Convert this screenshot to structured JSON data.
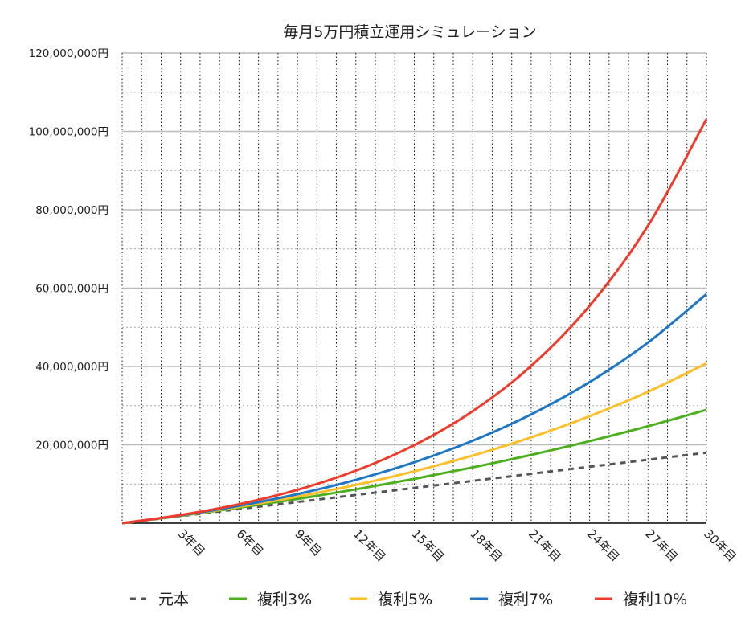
{
  "chart_data": {
    "type": "line",
    "title": "毎月5万円積立運用シミュレーション",
    "xlabel": "",
    "ylabel": "",
    "x": [
      0,
      3,
      6,
      9,
      12,
      15,
      18,
      21,
      24,
      27,
      30
    ],
    "x_tick_labels": [
      "3年目",
      "6年目",
      "9年目",
      "12年目",
      "15年目",
      "18年目",
      "21年目",
      "24年目",
      "27年目",
      "30年目"
    ],
    "x_tick_values": [
      3,
      6,
      9,
      12,
      15,
      18,
      21,
      24,
      27,
      30
    ],
    "xlim": [
      0,
      30
    ],
    "ylim": [
      0,
      120000000
    ],
    "y_tick_values": [
      20000000,
      40000000,
      60000000,
      80000000,
      100000000,
      120000000
    ],
    "y_tick_labels": [
      "20,000,000円",
      "40,000,000円",
      "60,000,000円",
      "80,000,000円",
      "100,000,000円",
      "120,000,000円"
    ],
    "grid": true,
    "legend_position": "bottom",
    "series": [
      {
        "name": "元本",
        "color": "#555555",
        "dashed": true,
        "values": [
          0,
          1800000,
          3600000,
          5400000,
          7200000,
          9000000,
          10800000,
          12600000,
          14400000,
          16200000,
          18000000
        ]
      },
      {
        "name": "複利3%",
        "color": "#4caf1e",
        "dashed": false,
        "values": [
          0,
          1880000,
          3934000,
          6179000,
          8632000,
          11312000,
          14241000,
          17441000,
          20938000,
          24760000,
          28935000
        ]
      },
      {
        "name": "複利5%",
        "color": "#fbbf2a",
        "dashed": false,
        "values": [
          0,
          1934000,
          4174000,
          6766000,
          9767000,
          13241000,
          17262000,
          21919000,
          27307000,
          33546000,
          40768000
        ]
      },
      {
        "name": "複利7%",
        "color": "#1f77c4",
        "dashed": false,
        "values": [
          0,
          1990000,
          4428000,
          7415000,
          11073000,
          15555000,
          21046000,
          27772000,
          36012000,
          46108000,
          58473000
        ]
      },
      {
        "name": "複利10%",
        "color": "#ef3b2c",
        "dashed": false,
        "values": [
          0,
          2075000,
          4838000,
          8515000,
          13409000,
          19922000,
          28591000,
          40132000,
          55490000,
          75932000,
          103143000
        ]
      }
    ]
  }
}
